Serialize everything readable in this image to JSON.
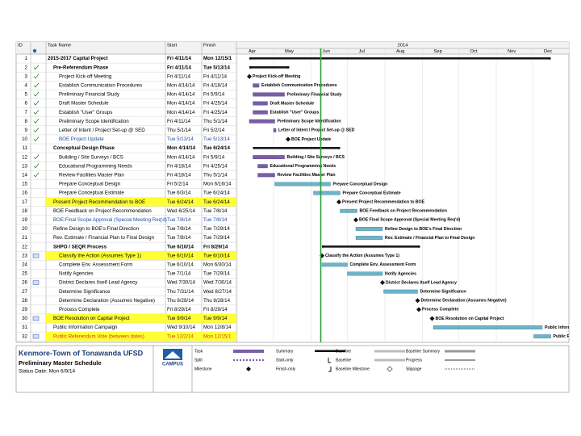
{
  "header": {
    "id": "ID",
    "task_name": "Task Name",
    "start": "Start",
    "finish": "Finish"
  },
  "timeline": {
    "year": "2014",
    "months": [
      "Apr",
      "May",
      "Jun",
      "Jul",
      "Aug",
      "Sep",
      "Oct",
      "Nov",
      "Dec"
    ]
  },
  "rows": [
    {
      "id": 1,
      "name": "2015-2017 Capital Project",
      "start": "Fri 4/11/14",
      "finish": "Mon 12/15/1",
      "level": 0,
      "summary": true
    },
    {
      "id": 2,
      "name": "Pre-Referendum Phase",
      "start": "Fri 4/11/14",
      "finish": "Tue 5/13/14",
      "level": 1,
      "summary": true,
      "done": true
    },
    {
      "id": 3,
      "name": "Project Kick-off Meeting",
      "start": "Fri 4/11/14",
      "finish": "Fri 4/11/14",
      "level": 2,
      "done": true
    },
    {
      "id": 4,
      "name": "Establish Communication Procedures",
      "start": "Mon 4/14/14",
      "finish": "Fri 4/18/14",
      "level": 2,
      "done": true
    },
    {
      "id": 5,
      "name": "Preliminary Financial Study",
      "start": "Mon 4/14/14",
      "finish": "Fri 5/9/14",
      "level": 2,
      "done": true
    },
    {
      "id": 6,
      "name": "Draft Master Schedule",
      "start": "Mon 4/14/14",
      "finish": "Fri 4/25/14",
      "level": 2,
      "done": true
    },
    {
      "id": 7,
      "name": "Establish \"User\" Groups",
      "start": "Mon 4/14/14",
      "finish": "Fri 4/25/14",
      "level": 2,
      "done": true
    },
    {
      "id": 8,
      "name": "Preliminary Scope Identification",
      "start": "Fri 4/11/14",
      "finish": "Thu 5/1/14",
      "level": 2,
      "done": true
    },
    {
      "id": 9,
      "name": "Letter of Intent / Project Set-up @ SED",
      "start": "Thu 5/1/14",
      "finish": "Fri 5/2/14",
      "level": 2,
      "done": true
    },
    {
      "id": 10,
      "name": "BOE Project Update",
      "start": "Tue 5/13/14",
      "finish": "Tue 5/13/14",
      "level": 2,
      "done": true,
      "color": "#1f4fa0"
    },
    {
      "id": 11,
      "name": "Conceptual Design Phase",
      "start": "Mon 4/14/14",
      "finish": "Tue 6/24/14",
      "level": 1,
      "summary": true
    },
    {
      "id": 12,
      "name": "Building / Site Surveys / BCS",
      "start": "Mon 4/14/14",
      "finish": "Fri 5/9/14",
      "level": 2,
      "done": true
    },
    {
      "id": 13,
      "name": "Educational Programming Needs",
      "start": "Fri 4/18/14",
      "finish": "Fri 4/25/14",
      "level": 2,
      "done": true
    },
    {
      "id": 14,
      "name": "Review Facilities Master Plan",
      "start": "Fri 4/18/14",
      "finish": "Thu 5/1/14",
      "level": 2,
      "done": true
    },
    {
      "id": 15,
      "name": "Prepare Conceptual Design",
      "start": "Fri 5/2/14",
      "finish": "Mon 6/16/14",
      "level": 2
    },
    {
      "id": 16,
      "name": "Prepare Conceptual Estimate",
      "start": "Tue 6/3/14",
      "finish": "Tue 6/24/14",
      "level": 2
    },
    {
      "id": 17,
      "name": "Present Project Recommendation to BOE",
      "start": "Tue 6/24/14",
      "finish": "Tue 6/24/14",
      "level": 1,
      "highlight": true
    },
    {
      "id": 18,
      "name": "BOE Feedback on Project Recommendation",
      "start": "Wed 6/25/14",
      "finish": "Tue 7/8/14",
      "level": 1
    },
    {
      "id": 19,
      "name": "BOE Final Scope Approval (Special Meeting Req'd)",
      "start": "Tue 7/8/14",
      "finish": "Tue 7/8/14",
      "level": 1,
      "color": "#1f4fa0"
    },
    {
      "id": 20,
      "name": "Refine Design to BOE's Final Direction",
      "start": "Tue 7/8/14",
      "finish": "Tue 7/29/14",
      "level": 1
    },
    {
      "id": 21,
      "name": "Rev. Estimate / Financial Plan to Final Design",
      "start": "Tue 7/8/14",
      "finish": "Tue 7/29/14",
      "level": 1
    },
    {
      "id": 22,
      "name": "SHPO / SEQR Process",
      "start": "Tue 6/10/14",
      "finish": "Fri 8/29/14",
      "level": 1,
      "summary": true
    },
    {
      "id": 23,
      "name": "Classify the Action (Assumes Type 1)",
      "start": "Tue 6/10/14",
      "finish": "Tue 6/10/14",
      "level": 2,
      "highlight": true,
      "note": true
    },
    {
      "id": 24,
      "name": "Complete Env. Assessment Form",
      "start": "Tue 6/10/14",
      "finish": "Mon 6/30/14",
      "level": 2
    },
    {
      "id": 25,
      "name": "Notify Agencies",
      "start": "Tue 7/1/14",
      "finish": "Tue 7/29/14",
      "level": 2
    },
    {
      "id": 26,
      "name": "District Declares Itself Lead Agency",
      "start": "Wed 7/30/14",
      "finish": "Wed 7/30/14",
      "level": 2,
      "note": true
    },
    {
      "id": 27,
      "name": "Determine Significance",
      "start": "Thu 7/31/14",
      "finish": "Wed 8/27/14",
      "level": 2
    },
    {
      "id": 28,
      "name": "Determine Declaration (Assumes Negative)",
      "start": "Thu 8/28/14",
      "finish": "Thu 8/28/14",
      "level": 2
    },
    {
      "id": 29,
      "name": "Process Complete",
      "start": "Fri 8/29/14",
      "finish": "Fri 8/29/14",
      "level": 2
    },
    {
      "id": 30,
      "name": "BOE Resolution on Capital Project",
      "start": "Tue 9/9/14",
      "finish": "Tue 9/9/14",
      "level": 1,
      "highlight": true,
      "note": true
    },
    {
      "id": 31,
      "name": "Public Information Campaign",
      "start": "Wed 9/10/14",
      "finish": "Mon 12/8/14",
      "level": 1
    },
    {
      "id": 32,
      "name": "Public Referendum Vote (between dates)",
      "start": "Tue 12/2/14",
      "finish": "Mon 12/15/1",
      "level": 1,
      "highlight": true,
      "note": true,
      "color": "#d2451e"
    }
  ],
  "footer": {
    "title": "Kenmore-Town of Tonawanda UFSD",
    "subtitle": "Preliminary Master Schedule",
    "status_date": "Status Date: Mon 6/9/14",
    "logo": "CAMPUS"
  },
  "legend": [
    "Task",
    "Split",
    "Milestone",
    "Summary",
    "Start-only",
    "Finish-only",
    "Baseline",
    "Baseline",
    "Baseline Milestone",
    "Baseline Summary",
    "Progress",
    "Slippage"
  ]
}
